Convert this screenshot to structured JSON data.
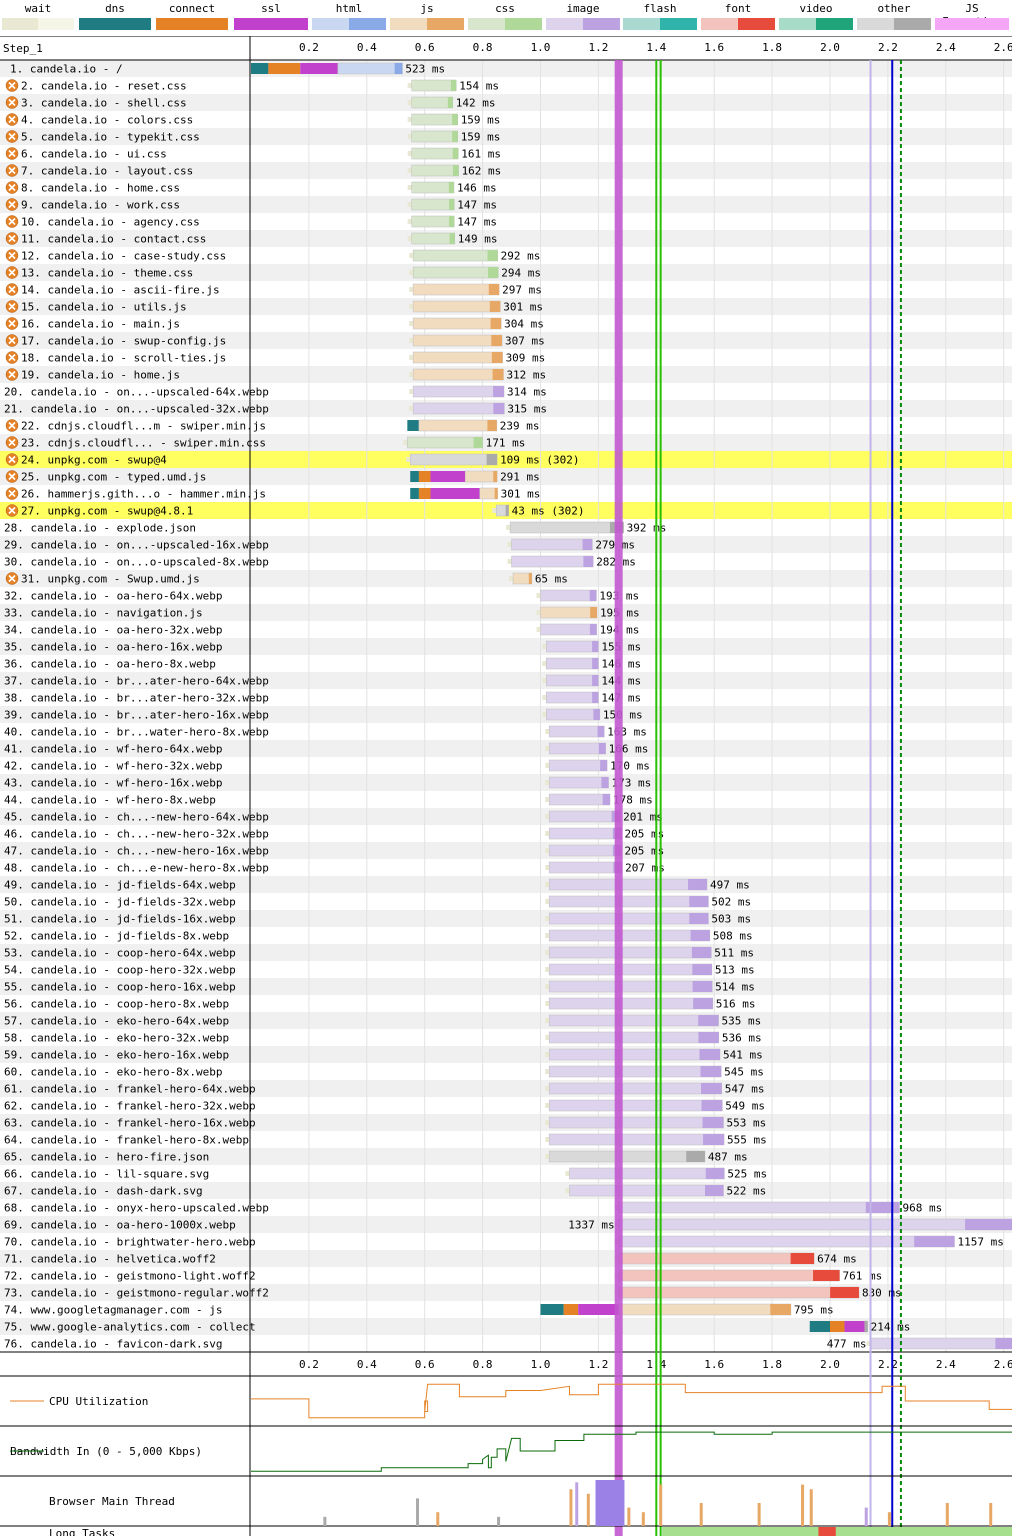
{
  "legend": [
    {
      "label": "wait",
      "lo": "#e9e9d3",
      "hi": "#f5f5e8"
    },
    {
      "label": "dns",
      "lo": "#1f7c83",
      "hi": "#1f7c83"
    },
    {
      "label": "connect",
      "lo": "#e58226",
      "hi": "#e58226"
    },
    {
      "label": "ssl",
      "lo": "#c141cd",
      "hi": "#c141cd"
    },
    {
      "label": "html",
      "lo": "#c9d8f0",
      "hi": "#89aae6"
    },
    {
      "label": "js",
      "lo": "#f2dcc0",
      "hi": "#e7a765"
    },
    {
      "label": "css",
      "lo": "#d7e6cc",
      "hi": "#b0d898"
    },
    {
      "label": "image",
      "lo": "#ddd3ec",
      "hi": "#bca2e0"
    },
    {
      "label": "flash",
      "lo": "#a9d9d1",
      "hi": "#2fb3aa"
    },
    {
      "label": "font",
      "lo": "#f3c4be",
      "hi": "#e74b3c"
    },
    {
      "label": "video",
      "lo": "#a9dbc9",
      "hi": "#20a479"
    },
    {
      "label": "other",
      "lo": "#d9d9d9",
      "hi": "#aaaaaa"
    },
    {
      "label": "JS Execution",
      "lo": "#f6a6f6",
      "hi": "#f6a6f6"
    }
  ],
  "chart_data": {
    "type": "waterfall",
    "step_label": "Step_1",
    "x_unit": "s",
    "xlim": [
      0,
      2.63
    ],
    "ticks": [
      "0.2",
      "0.4",
      "0.6",
      "0.8",
      "1.0",
      "1.2",
      "1.4",
      "1.6",
      "1.8",
      "2.0",
      "2.2",
      "2.4",
      "2.6"
    ],
    "markers": [
      {
        "t": 1.27,
        "color": "#c158cf",
        "kind": "band"
      },
      {
        "t": 1.4,
        "color": "#28c000",
        "kind": "line"
      },
      {
        "t": 1.415,
        "color": "#28c000",
        "kind": "line"
      },
      {
        "t": 2.14,
        "color": "#c0b4ea",
        "kind": "line"
      },
      {
        "t": 2.215,
        "color": "#0000cc",
        "kind": "line"
      },
      {
        "t": 2.245,
        "color": "#0a8a0a",
        "kind": "dashed"
      }
    ],
    "requests": [
      {
        "n": "1",
        "label": "candela.io - /",
        "start": 0.0,
        "end": 0.523,
        "wait": 0.0,
        "dns": [
          0.0,
          0.06
        ],
        "conn": [
          0.06,
          0.17
        ],
        "ssl": [
          0.17,
          0.3
        ],
        "type": "html",
        "time": "523 ms",
        "icon": false
      },
      {
        "n": "2",
        "label": "candela.io - reset.css",
        "start": 0.555,
        "end": 0.709,
        "type": "css",
        "time": "154 ms",
        "icon": true
      },
      {
        "n": "3",
        "label": "candela.io - shell.css",
        "start": 0.555,
        "end": 0.697,
        "type": "css",
        "time": "142 ms",
        "icon": true
      },
      {
        "n": "4",
        "label": "candela.io - colors.css",
        "start": 0.555,
        "end": 0.714,
        "type": "css",
        "time": "159 ms",
        "icon": true
      },
      {
        "n": "5",
        "label": "candela.io - typekit.css",
        "start": 0.555,
        "end": 0.714,
        "type": "css",
        "time": "159 ms",
        "icon": true
      },
      {
        "n": "6",
        "label": "candela.io - ui.css",
        "start": 0.555,
        "end": 0.716,
        "type": "css",
        "time": "161 ms",
        "icon": true
      },
      {
        "n": "7",
        "label": "candela.io - layout.css",
        "start": 0.555,
        "end": 0.717,
        "type": "css",
        "time": "162 ms",
        "icon": true
      },
      {
        "n": "8",
        "label": "candela.io - home.css",
        "start": 0.555,
        "end": 0.701,
        "type": "css",
        "time": "146 ms",
        "icon": true
      },
      {
        "n": "9",
        "label": "candela.io - work.css",
        "start": 0.555,
        "end": 0.702,
        "type": "css",
        "time": "147 ms",
        "icon": true
      },
      {
        "n": "10",
        "label": "candela.io - agency.css",
        "start": 0.555,
        "end": 0.702,
        "type": "css",
        "time": "147 ms",
        "icon": true
      },
      {
        "n": "11",
        "label": "candela.io - contact.css",
        "start": 0.555,
        "end": 0.704,
        "type": "css",
        "time": "149 ms",
        "icon": true
      },
      {
        "n": "12",
        "label": "candela.io - case-study.css",
        "start": 0.56,
        "end": 0.852,
        "type": "css",
        "time": "292 ms",
        "icon": true
      },
      {
        "n": "13",
        "label": "candela.io - theme.css",
        "start": 0.56,
        "end": 0.854,
        "type": "css",
        "time": "294 ms",
        "icon": true
      },
      {
        "n": "14",
        "label": "candela.io - ascii-fire.js",
        "start": 0.56,
        "end": 0.857,
        "type": "js",
        "time": "297 ms",
        "icon": true
      },
      {
        "n": "15",
        "label": "candela.io - utils.js",
        "start": 0.56,
        "end": 0.861,
        "type": "js",
        "time": "301 ms",
        "icon": true
      },
      {
        "n": "16",
        "label": "candela.io - main.js",
        "start": 0.56,
        "end": 0.864,
        "type": "js",
        "time": "304 ms",
        "icon": true
      },
      {
        "n": "17",
        "label": "candela.io - swup-config.js",
        "start": 0.56,
        "end": 0.867,
        "type": "js",
        "time": "307 ms",
        "icon": true
      },
      {
        "n": "18",
        "label": "candela.io - scroll-ties.js",
        "start": 0.56,
        "end": 0.869,
        "type": "js",
        "time": "309 ms",
        "icon": true
      },
      {
        "n": "19",
        "label": "candela.io - home.js",
        "start": 0.56,
        "end": 0.872,
        "type": "js",
        "time": "312 ms",
        "icon": true
      },
      {
        "n": "20",
        "label": "candela.io - on...-upscaled-64x.webp",
        "start": 0.56,
        "end": 0.874,
        "type": "image",
        "time": "314 ms",
        "icon": false
      },
      {
        "n": "21",
        "label": "candela.io - on...-upscaled-32x.webp",
        "start": 0.56,
        "end": 0.875,
        "type": "image",
        "time": "315 ms",
        "icon": false
      },
      {
        "n": "22",
        "label": "cdnjs.cloudfl...m - swiper.min.js",
        "start": 0.54,
        "end": 0.849,
        "dns": [
          0.54,
          0.58
        ],
        "type": "js",
        "time": "239 ms",
        "icon": true
      },
      {
        "n": "23",
        "label": "cdnjs.cloudfl... - swiper.min.css",
        "start": 0.54,
        "end": 0.8,
        "type": "css",
        "time": "171 ms",
        "icon": true
      },
      {
        "n": "24",
        "label": "unpkg.com - swup@4",
        "start": 0.55,
        "end": 0.85,
        "type": "other",
        "time": "109 ms (302)",
        "icon": true,
        "highlight": true
      },
      {
        "n": "25",
        "label": "unpkg.com - typed.umd.js",
        "start": 0.55,
        "end": 0.85,
        "dns": [
          0.55,
          0.58
        ],
        "conn": [
          0.58,
          0.62
        ],
        "ssl": [
          0.62,
          0.74
        ],
        "type": "js",
        "time": "291 ms",
        "icon": true
      },
      {
        "n": "26",
        "label": "hammerjs.gith...o - hammer.min.js",
        "start": 0.55,
        "end": 0.852,
        "dns": [
          0.55,
          0.58
        ],
        "conn": [
          0.58,
          0.62
        ],
        "ssl": [
          0.62,
          0.79
        ],
        "type": "js",
        "time": "301 ms",
        "icon": true
      },
      {
        "n": "27",
        "label": "unpkg.com - swup@4.8.1",
        "start": 0.847,
        "end": 0.89,
        "type": "other",
        "time": "43 ms (302)",
        "icon": true,
        "highlight": true
      },
      {
        "n": "28",
        "label": "candela.io - explode.json",
        "start": 0.895,
        "end": 1.287,
        "type": "other",
        "time": "392 ms",
        "icon": false
      },
      {
        "n": "29",
        "label": "candela.io - on...-upscaled-16x.webp",
        "start": 0.9,
        "end": 1.179,
        "type": "image",
        "time": "279 ms",
        "icon": false
      },
      {
        "n": "30",
        "label": "candela.io - on...o-upscaled-8x.webp",
        "start": 0.9,
        "end": 1.182,
        "type": "image",
        "time": "282 ms",
        "icon": false
      },
      {
        "n": "31",
        "label": "unpkg.com - Swup.umd.js",
        "start": 0.905,
        "end": 0.97,
        "type": "js",
        "time": "65 ms",
        "icon": true
      },
      {
        "n": "32",
        "label": "candela.io - oa-hero-64x.webp",
        "start": 1.0,
        "end": 1.193,
        "type": "image",
        "time": "193 ms",
        "icon": false
      },
      {
        "n": "33",
        "label": "candela.io - navigation.js",
        "start": 1.0,
        "end": 1.195,
        "type": "js",
        "time": "195 ms",
        "icon": false
      },
      {
        "n": "34",
        "label": "candela.io - oa-hero-32x.webp",
        "start": 1.0,
        "end": 1.194,
        "type": "image",
        "time": "194 ms",
        "icon": false
      },
      {
        "n": "35",
        "label": "candela.io - oa-hero-16x.webp",
        "start": 1.02,
        "end": 1.2,
        "type": "image",
        "time": "155 ms",
        "icon": false
      },
      {
        "n": "36",
        "label": "candela.io - oa-hero-8x.webp",
        "start": 1.02,
        "end": 1.2,
        "type": "image",
        "time": "146 ms",
        "icon": false
      },
      {
        "n": "37",
        "label": "candela.io - br...ater-hero-64x.webp",
        "start": 1.02,
        "end": 1.2,
        "type": "image",
        "time": "144 ms",
        "icon": false
      },
      {
        "n": "38",
        "label": "candela.io - br...ater-hero-32x.webp",
        "start": 1.02,
        "end": 1.2,
        "type": "image",
        "time": "147 ms",
        "icon": false
      },
      {
        "n": "39",
        "label": "candela.io - br...ater-hero-16x.webp",
        "start": 1.02,
        "end": 1.205,
        "type": "image",
        "time": "150 ms",
        "icon": false
      },
      {
        "n": "40",
        "label": "candela.io - br...water-hero-8x.webp",
        "start": 1.03,
        "end": 1.22,
        "type": "image",
        "time": "163 ms",
        "icon": false
      },
      {
        "n": "41",
        "label": "candela.io - wf-hero-64x.webp",
        "start": 1.03,
        "end": 1.225,
        "type": "image",
        "time": "166 ms",
        "icon": false
      },
      {
        "n": "42",
        "label": "candela.io - wf-hero-32x.webp",
        "start": 1.03,
        "end": 1.23,
        "type": "image",
        "time": "170 ms",
        "icon": false
      },
      {
        "n": "43",
        "label": "candela.io - wf-hero-16x.webp",
        "start": 1.03,
        "end": 1.235,
        "type": "image",
        "time": "173 ms",
        "icon": false
      },
      {
        "n": "44",
        "label": "candela.io - wf-hero-8x.webp",
        "start": 1.03,
        "end": 1.24,
        "type": "image",
        "time": "178 ms",
        "icon": false
      },
      {
        "n": "45",
        "label": "candela.io - ch...-new-hero-64x.webp",
        "start": 1.03,
        "end": 1.275,
        "type": "image",
        "time": "201 ms",
        "icon": false
      },
      {
        "n": "46",
        "label": "candela.io - ch...-new-hero-32x.webp",
        "start": 1.03,
        "end": 1.28,
        "type": "image",
        "time": "205 ms",
        "icon": false
      },
      {
        "n": "47",
        "label": "candela.io - ch...-new-hero-16x.webp",
        "start": 1.03,
        "end": 1.28,
        "type": "image",
        "time": "205 ms",
        "icon": false
      },
      {
        "n": "48",
        "label": "candela.io - ch...e-new-hero-8x.webp",
        "start": 1.03,
        "end": 1.282,
        "type": "image",
        "time": "207 ms",
        "icon": false
      },
      {
        "n": "49",
        "label": "candela.io - jd-fields-64x.webp",
        "start": 1.03,
        "end": 1.575,
        "type": "image",
        "time": "497 ms",
        "icon": false
      },
      {
        "n": "50",
        "label": "candela.io - jd-fields-32x.webp",
        "start": 1.03,
        "end": 1.58,
        "type": "image",
        "time": "502 ms",
        "icon": false
      },
      {
        "n": "51",
        "label": "candela.io - jd-fields-16x.webp",
        "start": 1.03,
        "end": 1.58,
        "type": "image",
        "time": "503 ms",
        "icon": false
      },
      {
        "n": "52",
        "label": "candela.io - jd-fields-8x.webp",
        "start": 1.03,
        "end": 1.585,
        "type": "image",
        "time": "508 ms",
        "icon": false
      },
      {
        "n": "53",
        "label": "candela.io - coop-hero-64x.webp",
        "start": 1.03,
        "end": 1.59,
        "type": "image",
        "time": "511 ms",
        "icon": false
      },
      {
        "n": "54",
        "label": "candela.io - coop-hero-32x.webp",
        "start": 1.03,
        "end": 1.592,
        "type": "image",
        "time": "513 ms",
        "icon": false
      },
      {
        "n": "55",
        "label": "candela.io - coop-hero-16x.webp",
        "start": 1.03,
        "end": 1.593,
        "type": "image",
        "time": "514 ms",
        "icon": false
      },
      {
        "n": "56",
        "label": "candela.io - coop-hero-8x.webp",
        "start": 1.03,
        "end": 1.595,
        "type": "image",
        "time": "516 ms",
        "icon": false
      },
      {
        "n": "57",
        "label": "candela.io - eko-hero-64x.webp",
        "start": 1.03,
        "end": 1.615,
        "type": "image",
        "time": "535 ms",
        "icon": false
      },
      {
        "n": "58",
        "label": "candela.io - eko-hero-32x.webp",
        "start": 1.03,
        "end": 1.616,
        "type": "image",
        "time": "536 ms",
        "icon": false
      },
      {
        "n": "59",
        "label": "candela.io - eko-hero-16x.webp",
        "start": 1.03,
        "end": 1.62,
        "type": "image",
        "time": "541 ms",
        "icon": false
      },
      {
        "n": "60",
        "label": "candela.io - eko-hero-8x.webp",
        "start": 1.03,
        "end": 1.624,
        "type": "image",
        "time": "545 ms",
        "icon": false
      },
      {
        "n": "61",
        "label": "candela.io - frankel-hero-64x.webp",
        "start": 1.03,
        "end": 1.626,
        "type": "image",
        "time": "547 ms",
        "icon": false
      },
      {
        "n": "62",
        "label": "candela.io - frankel-hero-32x.webp",
        "start": 1.03,
        "end": 1.628,
        "type": "image",
        "time": "549 ms",
        "icon": false
      },
      {
        "n": "63",
        "label": "candela.io - frankel-hero-16x.webp",
        "start": 1.03,
        "end": 1.632,
        "type": "image",
        "time": "553 ms",
        "icon": false
      },
      {
        "n": "64",
        "label": "candela.io - frankel-hero-8x.webp",
        "start": 1.03,
        "end": 1.634,
        "type": "image",
        "time": "555 ms",
        "icon": false
      },
      {
        "n": "65",
        "label": "candela.io - hero-fire.json",
        "start": 1.03,
        "end": 1.568,
        "type": "other",
        "time": "487 ms",
        "icon": false
      },
      {
        "n": "66",
        "label": "candela.io - lil-square.svg",
        "start": 1.1,
        "end": 1.635,
        "type": "image",
        "time": "525 ms",
        "icon": false
      },
      {
        "n": "67",
        "label": "candela.io - dash-dark.svg",
        "start": 1.1,
        "end": 1.632,
        "type": "image",
        "time": "522 ms",
        "icon": false
      },
      {
        "n": "68",
        "label": "candela.io - onyx-hero-upscaled.webp",
        "start": 1.27,
        "end": 2.24,
        "type": "image",
        "time": "968 ms",
        "icon": false
      },
      {
        "n": "69",
        "label": "candela.io - oa-hero-1000x.webp",
        "start": 1.27,
        "end": 2.63,
        "type": "image",
        "time": "1337 ms",
        "icon": false,
        "label_left": true
      },
      {
        "n": "70",
        "label": "candela.io - brightwater-hero.webp",
        "start": 1.27,
        "end": 2.43,
        "type": "image",
        "time": "1157 ms",
        "icon": false
      },
      {
        "n": "71",
        "label": "candela.io - helvetica.woff2",
        "start": 1.27,
        "end": 1.945,
        "type": "font",
        "time": "674 ms",
        "icon": false
      },
      {
        "n": "72",
        "label": "candela.io - geistmono-light.woff2",
        "start": 1.27,
        "end": 2.033,
        "type": "font",
        "time": "761 ms",
        "icon": false
      },
      {
        "n": "73",
        "label": "candela.io - geistmono-regular.woff2",
        "start": 1.27,
        "end": 2.1,
        "type": "font",
        "time": "830 ms",
        "icon": false
      },
      {
        "n": "74",
        "label": "www.googletagmanager.com - js",
        "start": 1.0,
        "end": 1.865,
        "dns": [
          1.0,
          1.08
        ],
        "conn": [
          1.08,
          1.13
        ],
        "ssl": [
          1.13,
          1.27
        ],
        "type": "js",
        "time": "795 ms",
        "icon": false
      },
      {
        "n": "75",
        "label": "www.google-analytics.com - collect",
        "start": 1.93,
        "end": 2.13,
        "dns": [
          1.93,
          2.0
        ],
        "conn": [
          2.0,
          2.05
        ],
        "ssl": [
          2.05,
          2.12
        ],
        "type": "other",
        "time": "214 ms",
        "icon": false
      },
      {
        "n": "76",
        "label": "candela.io - favicon-dark.svg",
        "start": 2.14,
        "end": 2.63,
        "type": "image",
        "time": "477 ms",
        "icon": false,
        "label_left": true
      }
    ],
    "panels": [
      {
        "label": "CPU Utilization",
        "color": "#e58226"
      },
      {
        "label": "Bandwidth In (0 - 5,000 Kbps)",
        "color": "#0a6a0a"
      },
      {
        "label": "Browser Main Thread",
        "color": "#bca2e0"
      },
      {
        "label": "Long Tasks",
        "color": "#a6e08f"
      }
    ]
  }
}
